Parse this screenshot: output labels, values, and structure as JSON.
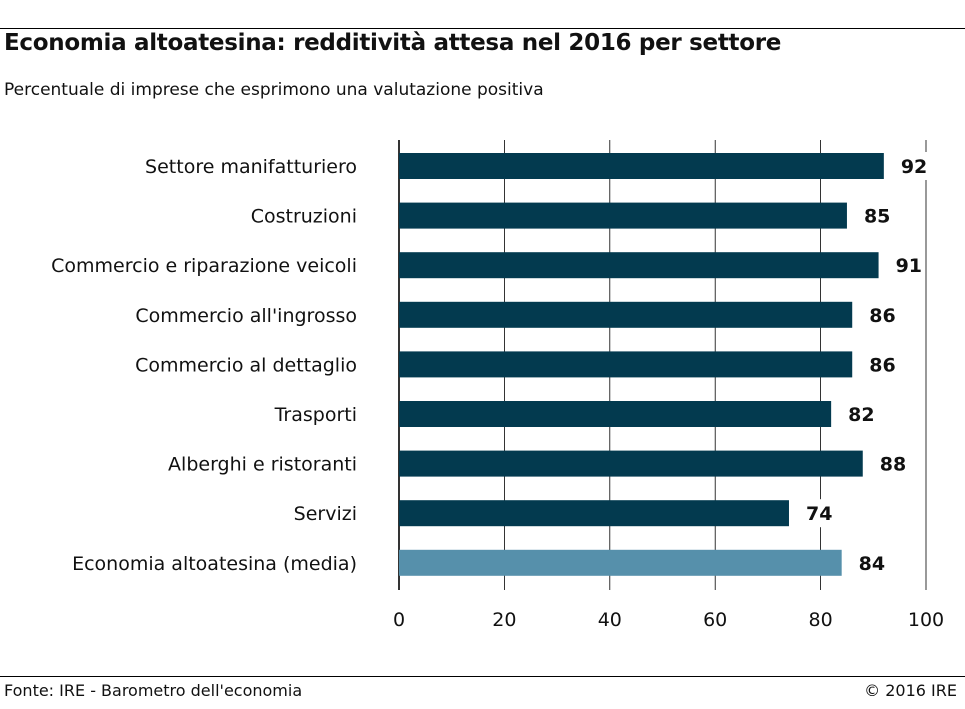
{
  "title": "Economia altoatesina: redditività attesa nel 2016 per settore",
  "subtitle": "Percentuale di imprese che esprimono una valutazione positiva",
  "source": "Fonte: IRE - Barometro dell'economia",
  "copyright": "© 2016 IRE",
  "colors": {
    "bar": "#033a4f",
    "highlight": "#5690ab",
    "grid": "#000000",
    "text": "#111111"
  },
  "chart_data": {
    "type": "bar",
    "orientation": "horizontal",
    "title": "Economia altoatesina: redditività attesa nel 2016 per settore",
    "subtitle": "Percentuale di imprese che esprimono una valutazione positiva",
    "categories": [
      "Settore manifatturiero",
      "Costruzioni",
      "Commercio e riparazione veicoli",
      "Commercio all'ingrosso",
      "Commercio al dettaglio",
      "Trasporti",
      "Alberghi e ristoranti",
      "Servizi",
      "Economia altoatesina (media)"
    ],
    "values": [
      92,
      85,
      91,
      86,
      86,
      82,
      88,
      74,
      84
    ],
    "highlight_index": 8,
    "xlim": [
      0,
      100
    ],
    "xticks": [
      0,
      20,
      40,
      60,
      80,
      100
    ],
    "grid": true,
    "data_labels": true,
    "xlabel": "",
    "ylabel": ""
  }
}
